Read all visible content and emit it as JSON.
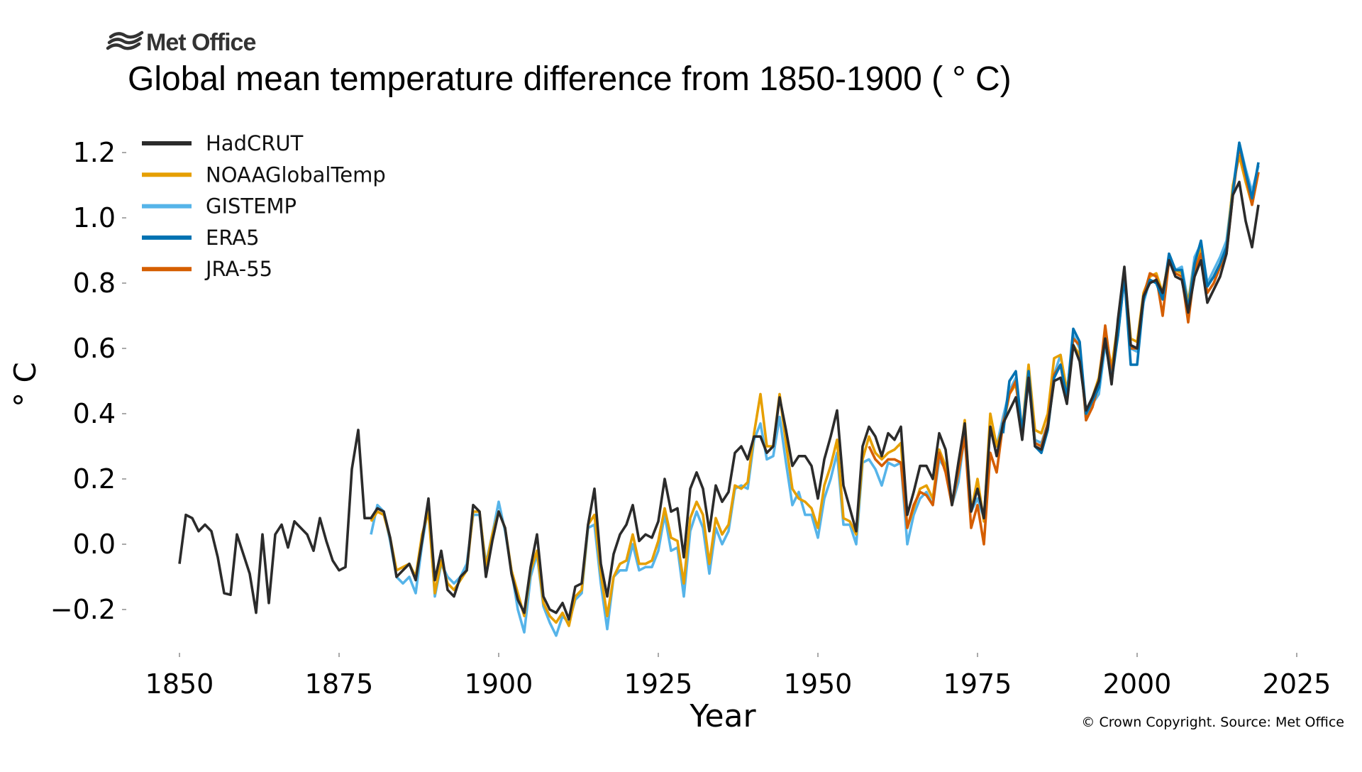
{
  "header": {
    "logo_text": "Met Office",
    "title": "Global mean temperature difference from 1850-1900 ( ° C)",
    "copyright": "© Crown Copyright. Source: Met Office"
  },
  "chart_data": {
    "type": "line",
    "title": "Global mean temperature difference from 1850-1900 ( ° C)",
    "xlabel": "Year",
    "ylabel": "° C",
    "xlim": [
      1845,
      2025
    ],
    "ylim": [
      -0.32,
      1.27
    ],
    "xticks": [
      1850,
      1875,
      1900,
      1925,
      1950,
      1975,
      2000,
      2025
    ],
    "xtick_labels": [
      "1850",
      "1875",
      "1900",
      "1925",
      "1950",
      "1975",
      "2000",
      "2025"
    ],
    "yticks": [
      -0.2,
      0.0,
      0.2,
      0.4,
      0.6,
      0.8,
      1.0,
      1.2
    ],
    "ytick_labels": [
      "−0.2",
      "0.0",
      "0.2",
      "0.4",
      "0.6",
      "0.8",
      "1.0",
      "1.2"
    ],
    "grid": false,
    "legend_position": "top-left",
    "series": [
      {
        "name": "HadCRUT",
        "color": "#2b2b2b",
        "start": 1850,
        "values": [
          -0.06,
          0.09,
          0.08,
          0.04,
          0.06,
          0.04,
          -0.04,
          -0.15,
          -0.155,
          0.03,
          -0.03,
          -0.09,
          -0.21,
          0.03,
          -0.18,
          0.03,
          0.06,
          -0.01,
          0.07,
          0.05,
          0.03,
          -0.02,
          0.08,
          0.01,
          -0.05,
          -0.08,
          -0.07,
          0.23,
          0.35,
          0.08,
          0.08,
          0.11,
          0.1,
          0.02,
          -0.1,
          -0.08,
          -0.06,
          -0.11,
          0.01,
          0.14,
          -0.11,
          -0.02,
          -0.14,
          -0.16,
          -0.1,
          -0.08,
          0.12,
          0.1,
          -0.1,
          0.01,
          0.1,
          0.05,
          -0.09,
          -0.17,
          -0.21,
          -0.07,
          0.03,
          -0.16,
          -0.2,
          -0.21,
          -0.18,
          -0.23,
          -0.13,
          -0.12,
          0.06,
          0.17,
          -0.06,
          -0.16,
          -0.03,
          0.03,
          0.06,
          0.12,
          0.01,
          0.03,
          0.02,
          0.07,
          0.2,
          0.1,
          0.11,
          -0.04,
          0.17,
          0.22,
          0.17,
          0.04,
          0.18,
          0.13,
          0.16,
          0.28,
          0.3,
          0.26,
          0.33,
          0.33,
          0.28,
          0.3,
          0.45,
          0.35,
          0.24,
          0.27,
          0.27,
          0.24,
          0.14,
          0.26,
          0.33,
          0.41,
          0.18,
          0.11,
          0.04,
          0.3,
          0.36,
          0.33,
          0.27,
          0.34,
          0.32,
          0.36,
          0.09,
          0.16,
          0.24,
          0.24,
          0.2,
          0.34,
          0.29,
          0.12,
          0.25,
          0.37,
          0.1,
          0.17,
          0.08,
          0.36,
          0.27,
          0.37,
          0.41,
          0.45,
          0.32,
          0.51,
          0.3,
          0.29,
          0.36,
          0.5,
          0.51,
          0.43,
          0.61,
          0.56,
          0.41,
          0.45,
          0.5,
          0.63,
          0.49,
          0.69,
          0.85,
          0.61,
          0.6,
          0.76,
          0.8,
          0.81,
          0.77,
          0.87,
          0.82,
          0.81,
          0.71,
          0.82,
          0.87,
          0.74,
          0.78,
          0.82,
          0.89,
          1.07,
          1.11,
          0.99,
          0.91,
          1.04
        ]
      },
      {
        "name": "NOAAGlobalTemp",
        "color": "#e69f00",
        "start": 1880,
        "values": [
          0.07,
          0.1,
          0.09,
          0.02,
          -0.08,
          -0.07,
          -0.06,
          -0.1,
          0.03,
          0.1,
          -0.15,
          -0.05,
          -0.12,
          -0.14,
          -0.11,
          -0.08,
          0.1,
          0.1,
          -0.07,
          0.03,
          0.1,
          0.05,
          -0.08,
          -0.15,
          -0.22,
          -0.08,
          -0.02,
          -0.18,
          -0.22,
          -0.24,
          -0.21,
          -0.25,
          -0.16,
          -0.14,
          0.06,
          0.09,
          -0.09,
          -0.22,
          -0.1,
          -0.06,
          -0.05,
          0.03,
          -0.06,
          -0.06,
          -0.05,
          0.01,
          0.11,
          0.02,
          0.01,
          -0.12,
          0.08,
          0.13,
          0.09,
          -0.06,
          0.08,
          0.03,
          0.06,
          0.18,
          0.17,
          0.19,
          0.34,
          0.46,
          0.3,
          0.3,
          0.46,
          0.31,
          0.17,
          0.14,
          0.13,
          0.11,
          0.05,
          0.18,
          0.24,
          0.32,
          0.08,
          0.07,
          0.03,
          0.26,
          0.33,
          0.28,
          0.26,
          0.28,
          0.29,
          0.31,
          0.05,
          0.11,
          0.17,
          0.18,
          0.14,
          0.29,
          0.24,
          0.13,
          0.22,
          0.38,
          0.1,
          0.2,
          0.07,
          0.4,
          0.3,
          0.36,
          0.46,
          0.49,
          0.35,
          0.55,
          0.35,
          0.34,
          0.4,
          0.57,
          0.58,
          0.47,
          0.61,
          0.58,
          0.4,
          0.45,
          0.51,
          0.65,
          0.54,
          0.68,
          0.83,
          0.63,
          0.62,
          0.77,
          0.82,
          0.83,
          0.77,
          0.88,
          0.84,
          0.83,
          0.74,
          0.86,
          0.91,
          0.79,
          0.82,
          0.86,
          0.91,
          1.1,
          1.19,
          1.11,
          1.04,
          1.14
        ]
      },
      {
        "name": "GISTEMP",
        "color": "#56b4e9",
        "start": 1880,
        "values": [
          0.03,
          0.12,
          0.1,
          0.01,
          -0.1,
          -0.12,
          -0.1,
          -0.15,
          0.0,
          0.12,
          -0.16,
          -0.06,
          -0.1,
          -0.12,
          -0.1,
          -0.06,
          0.09,
          0.09,
          -0.06,
          0.03,
          0.13,
          0.04,
          -0.08,
          -0.2,
          -0.27,
          -0.1,
          -0.03,
          -0.19,
          -0.24,
          -0.28,
          -0.22,
          -0.24,
          -0.17,
          -0.15,
          0.05,
          0.06,
          -0.12,
          -0.26,
          -0.1,
          -0.08,
          -0.08,
          0.0,
          -0.08,
          -0.07,
          -0.07,
          -0.02,
          0.09,
          -0.02,
          -0.01,
          -0.16,
          0.04,
          0.1,
          0.05,
          -0.09,
          0.05,
          0.0,
          0.04,
          0.17,
          0.18,
          0.17,
          0.32,
          0.37,
          0.26,
          0.27,
          0.39,
          0.25,
          0.12,
          0.16,
          0.09,
          0.09,
          0.02,
          0.14,
          0.2,
          0.28,
          0.06,
          0.06,
          0.0,
          0.25,
          0.26,
          0.23,
          0.18,
          0.25,
          0.24,
          0.25,
          0.0,
          0.09,
          0.14,
          0.16,
          0.12,
          0.26,
          0.23,
          0.12,
          0.19,
          0.34,
          0.1,
          0.14,
          0.08,
          0.36,
          0.3,
          0.39,
          0.47,
          0.51,
          0.34,
          0.5,
          0.32,
          0.31,
          0.37,
          0.52,
          0.58,
          0.46,
          0.64,
          0.6,
          0.38,
          0.43,
          0.46,
          0.61,
          0.52,
          0.64,
          0.82,
          0.6,
          0.59,
          0.74,
          0.81,
          0.8,
          0.76,
          0.89,
          0.84,
          0.85,
          0.74,
          0.88,
          0.92,
          0.8,
          0.84,
          0.88,
          0.93,
          1.09,
          1.23,
          1.15,
          1.08,
          1.16
        ]
      },
      {
        "name": "ERA5",
        "color": "#0072b2",
        "start": 1979,
        "values": [
          0.34,
          0.5,
          0.53,
          0.34,
          0.53,
          0.3,
          0.28,
          0.35,
          0.51,
          0.55,
          0.45,
          0.66,
          0.62,
          0.4,
          0.44,
          0.48,
          0.63,
          0.5,
          0.64,
          0.82,
          0.55,
          0.55,
          0.75,
          0.81,
          0.8,
          0.75,
          0.89,
          0.84,
          0.84,
          0.72,
          0.86,
          0.93,
          0.79,
          0.82,
          0.86,
          0.91,
          1.08,
          1.23,
          1.14,
          1.06,
          1.17
        ]
      },
      {
        "name": "JRA-55",
        "color": "#d55e00",
        "start": 1958,
        "values": [
          0.3,
          0.26,
          0.24,
          0.26,
          0.26,
          0.25,
          0.05,
          0.12,
          0.16,
          0.15,
          0.12,
          0.28,
          0.22,
          0.12,
          0.22,
          0.33,
          0.05,
          0.12,
          0.0,
          0.28,
          0.22,
          0.37,
          0.46,
          0.5,
          0.33,
          0.52,
          0.31,
          0.3,
          0.37,
          0.52,
          0.55,
          0.44,
          0.63,
          0.61,
          0.38,
          0.42,
          0.49,
          0.67,
          0.52,
          0.65,
          0.82,
          0.6,
          0.6,
          0.76,
          0.83,
          0.82,
          0.7,
          0.87,
          0.83,
          0.82,
          0.68,
          0.84,
          0.89,
          0.77,
          0.8,
          0.85,
          0.89,
          1.07,
          1.22,
          1.13,
          1.04,
          1.14
        ]
      }
    ]
  }
}
